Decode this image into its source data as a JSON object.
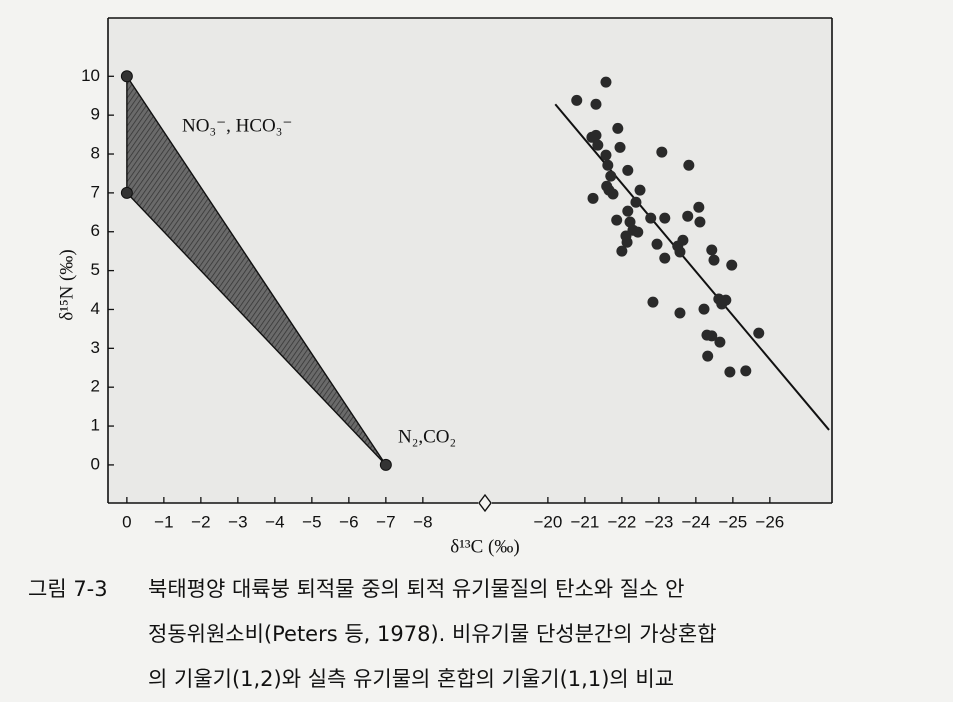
{
  "chart_data": [
    {
      "type": "polygon",
      "x_label": "δ¹³C (‰)",
      "y_label": "δ¹⁵N (‰)",
      "x": [
        0,
        0,
        -7
      ],
      "values": [
        10,
        7,
        0
      ],
      "color": "#555555",
      "annotations": [
        "NO₃⁻, HCO₃⁻",
        "N₂,CO₂"
      ],
      "xlim": [
        0.51,
        -9.68
      ],
      "ylim": [
        -0.98,
        11.5
      ],
      "xticks": [
        0,
        {
          "value": -1,
          "label": "−1"
        },
        {
          "value": -2,
          "label": "−2"
        },
        {
          "value": -3,
          "label": "−3"
        },
        {
          "value": -4,
          "label": "−4"
        },
        {
          "value": -5,
          "label": "−5"
        },
        {
          "value": -6,
          "label": "−6"
        },
        {
          "value": -7,
          "label": "−7"
        },
        {
          "value": -8,
          "label": "−8"
        }
      ],
      "yticks": [
        0,
        1,
        2,
        3,
        4,
        5,
        6,
        7,
        8,
        9,
        10
      ]
    },
    {
      "type": "scatter",
      "color": "#2a2a2a",
      "x": [
        -20.78,
        -21.3,
        -21.57,
        -21.19,
        -21.3,
        -21.35,
        -21.22,
        -21.57,
        -21.62,
        -21.7,
        -21.59,
        -21.65,
        -21.76,
        -21.89,
        -21.95,
        -22.16,
        -22.49,
        -22.38,
        -22.16,
        -21.86,
        -22.22,
        -22.3,
        -22.14,
        -22.0,
        -22.11,
        -22.43,
        -23.08,
        -22.78,
        -22.95,
        -23.16,
        -22.84,
        -23.51,
        -23.65,
        -23.81,
        -23.78,
        -24.08,
        -24.11,
        -24.43,
        -24.49,
        -24.97,
        -24.22,
        -24.62,
        -24.7,
        -24.81,
        -23.57,
        -24.3,
        -24.43,
        -24.65,
        -24.32,
        -24.92,
        -25.35,
        -25.7,
        -23.57,
        -23.16
      ],
      "values": [
        9.38,
        9.28,
        9.85,
        8.43,
        8.48,
        8.23,
        6.86,
        7.97,
        7.71,
        7.43,
        7.17,
        7.07,
        6.97,
        8.66,
        8.17,
        7.58,
        7.07,
        6.76,
        6.53,
        6.3,
        6.25,
        6.04,
        5.73,
        5.5,
        5.89,
        5.99,
        8.05,
        6.35,
        5.68,
        5.32,
        4.19,
        5.63,
        5.78,
        7.71,
        6.4,
        6.63,
        6.25,
        5.53,
        5.27,
        5.14,
        4.01,
        4.27,
        4.14,
        4.24,
        3.91,
        3.34,
        3.32,
        3.16,
        2.8,
        2.39,
        2.42,
        3.39,
        5.48,
        6.35
      ],
      "fit_line": {
        "x": [
          -20.2,
          -27.6
        ],
        "values": [
          9.28,
          0.9
        ]
      },
      "xlim": [
        -18.3,
        -27.68
      ],
      "ylim": [
        -0.98,
        11.5
      ],
      "xticks": [
        {
          "value": -20,
          "label": "−20"
        },
        {
          "value": -21,
          "label": "−21"
        },
        {
          "value": -22,
          "label": "−22"
        },
        {
          "value": -23,
          "label": "−23"
        },
        {
          "value": -24,
          "label": "−24"
        },
        {
          "value": -25,
          "label": "−25"
        },
        {
          "value": -26,
          "label": "−26"
        }
      ]
    }
  ],
  "caption": {
    "label": "그림 7-3",
    "lines": [
      "북태평양 대륙붕 퇴적물 중의 퇴적 유기물질의 탄소와 질소 안",
      "정동위원소비(Peters 등, 1978). 비유기물 단성분간의 가상혼합",
      "의 기울기(1,2)와 실측 유기물의 혼합의 기울기(1,1)의 비교"
    ]
  }
}
